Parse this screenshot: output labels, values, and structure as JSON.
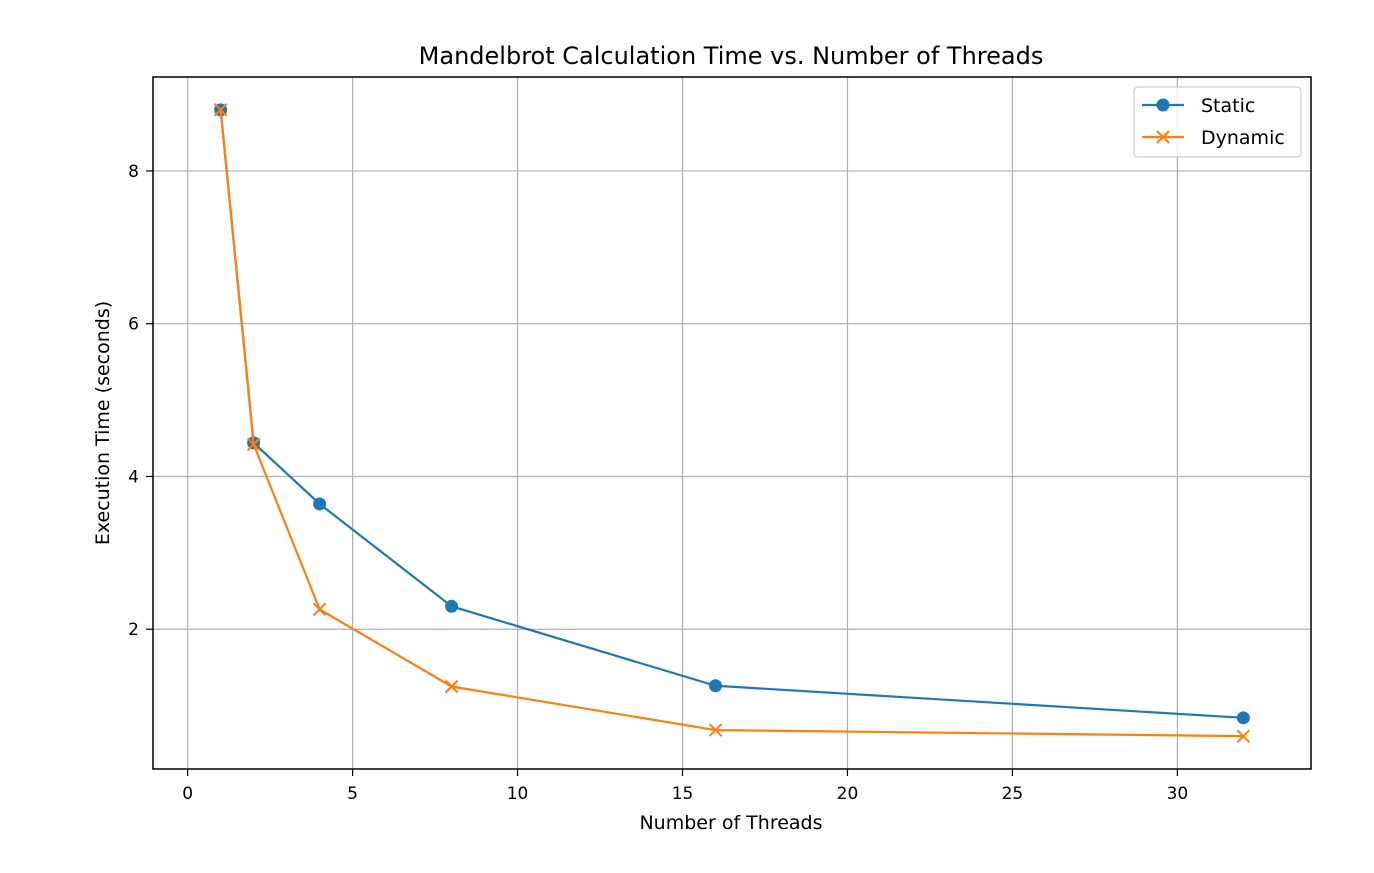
{
  "chart_data": {
    "type": "line",
    "title": "Mandelbrot Calculation Time vs. Number of Threads",
    "xlabel": "Number of Threads",
    "ylabel": "Execution Time (seconds)",
    "xlim": [
      -1.05,
      34.05
    ],
    "ylim": [
      0.17,
      9.23
    ],
    "xticks": [
      0,
      5,
      10,
      15,
      20,
      25,
      30
    ],
    "yticks": [
      2,
      4,
      6,
      8
    ],
    "grid": true,
    "legend_position": "top-right",
    "series": [
      {
        "name": "Static",
        "marker": "circle",
        "color": "#1f77b4",
        "x": [
          1,
          2,
          4,
          8,
          16,
          32
        ],
        "y": [
          8.8,
          4.44,
          3.64,
          2.3,
          1.26,
          0.84
        ]
      },
      {
        "name": "Dynamic",
        "marker": "x",
        "color": "#ff7f0e",
        "x": [
          1,
          2,
          4,
          8,
          16,
          32
        ],
        "y": [
          8.8,
          4.42,
          2.26,
          1.25,
          0.68,
          0.6
        ]
      }
    ]
  }
}
